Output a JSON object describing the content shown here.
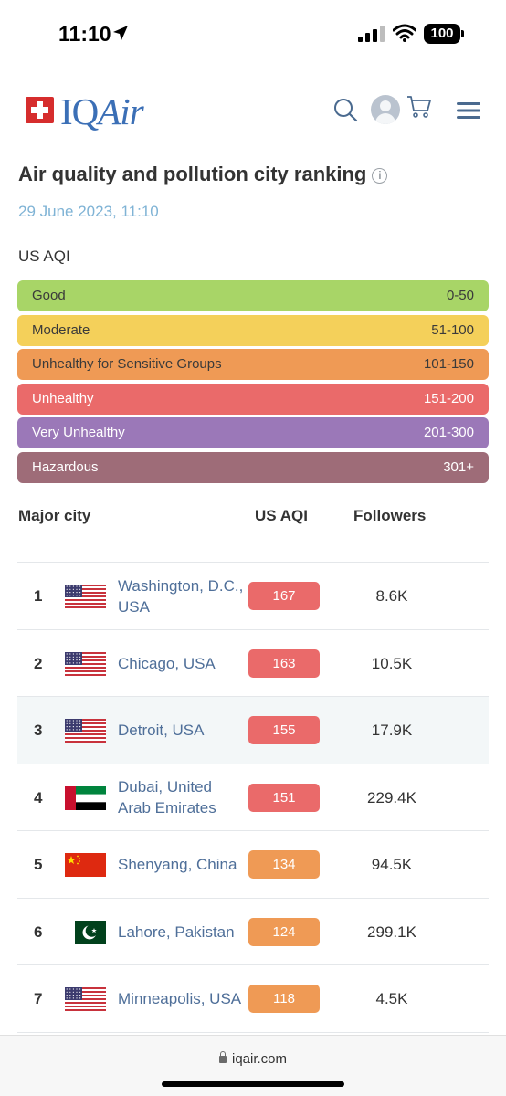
{
  "status_bar": {
    "time": "11:10",
    "battery": "100"
  },
  "header": {
    "logo_text_plain": "IQ",
    "logo_text_italic": "Air"
  },
  "page": {
    "title": "Air quality and pollution city ranking",
    "date": "29 June 2023, 11:10",
    "aqi_label": "US AQI"
  },
  "legend": [
    {
      "name": "Good",
      "range": "0-50",
      "color": "#a8d567",
      "text_color": "#3a3a3a"
    },
    {
      "name": "Moderate",
      "range": "51-100",
      "color": "#f4d05a",
      "text_color": "#3a3a3a"
    },
    {
      "name": "Unhealthy for Sensitive Groups",
      "range": "101-150",
      "color": "#ef9a55",
      "text_color": "#3a3a3a"
    },
    {
      "name": "Unhealthy",
      "range": "151-200",
      "color": "#ea6a6a",
      "text_color": "#ffffff"
    },
    {
      "name": "Very Unhealthy",
      "range": "201-300",
      "color": "#9b78b8",
      "text_color": "#ffffff"
    },
    {
      "name": "Hazardous",
      "range": "301+",
      "color": "#9e6c78",
      "text_color": "#ffffff"
    }
  ],
  "table": {
    "headers": {
      "city": "Major city",
      "aqi": "US AQI",
      "followers": "Followers"
    },
    "rows": [
      {
        "rank": "1",
        "flag": "us-flag-icon",
        "city": "Washington, D.C., USA",
        "aqi": "167",
        "aqi_color": "#ea6a6a",
        "followers": "8.6K"
      },
      {
        "rank": "2",
        "flag": "us-flag-icon",
        "city": "Chicago, USA",
        "aqi": "163",
        "aqi_color": "#ea6a6a",
        "followers": "10.5K"
      },
      {
        "rank": "3",
        "flag": "us-flag-icon",
        "city": "Detroit, USA",
        "aqi": "155",
        "aqi_color": "#ea6a6a",
        "followers": "17.9K"
      },
      {
        "rank": "4",
        "flag": "uae-flag-icon",
        "city": "Dubai, United Arab Emirates",
        "aqi": "151",
        "aqi_color": "#ea6a6a",
        "followers": "229.4K"
      },
      {
        "rank": "5",
        "flag": "china-flag-icon",
        "city": "Shenyang, China",
        "aqi": "134",
        "aqi_color": "#ef9a55",
        "followers": "94.5K"
      },
      {
        "rank": "6",
        "flag": "pakistan-flag-icon",
        "city": "Lahore, Pakistan",
        "aqi": "124",
        "aqi_color": "#ef9a55",
        "followers": "299.1K"
      },
      {
        "rank": "7",
        "flag": "us-flag-icon",
        "city": "Minneapolis, USA",
        "aqi": "118",
        "aqi_color": "#ef9a55",
        "followers": "4.5K"
      }
    ]
  },
  "browser": {
    "url": "iqair.com"
  }
}
